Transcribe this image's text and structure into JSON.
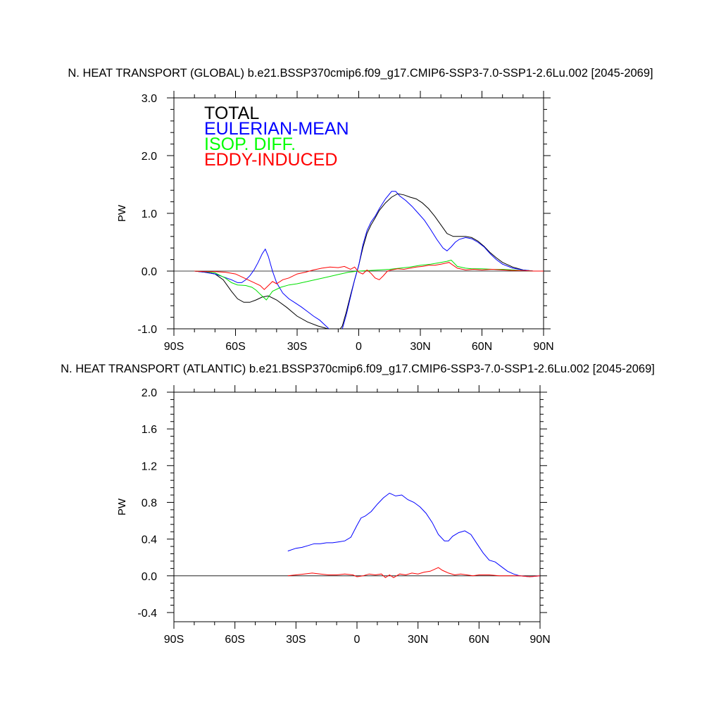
{
  "chart_data": [
    {
      "type": "line",
      "title": "N. HEAT TRANSPORT (GLOBAL) b.e21.BSSP370cmip6.f09_g17.CMIP6-SSP3-7.0-SSP1-2.6Lu.002 [2045-2069]",
      "xlabel": "",
      "ylabel": "PW",
      "xlim": [
        -90,
        90
      ],
      "ylim": [
        -1.0,
        3.0
      ],
      "xticks": [
        -90,
        -60,
        -30,
        0,
        30,
        60,
        90
      ],
      "xtick_labels": [
        "90S",
        "60S",
        "30S",
        "0",
        "30N",
        "60N",
        "90N"
      ],
      "yticks": [
        -1.0,
        0.0,
        1.0,
        2.0,
        3.0
      ],
      "ytick_labels": [
        "-1.0",
        "0.0",
        "1.0",
        "2.0",
        "3.0"
      ],
      "zero_line": true,
      "legend": [
        "TOTAL",
        "EULERIAN-MEAN",
        "ISOP. DIFF.",
        "EDDY-INDUCED"
      ],
      "series": [
        {
          "name": "TOTAL",
          "color": "#000000",
          "x": [
            -80,
            -75,
            -70,
            -66,
            -62,
            -59,
            -56,
            -53,
            -50,
            -47,
            -44,
            -40,
            -35,
            -30,
            -25,
            -20,
            -15,
            -10,
            -8,
            -6,
            -4,
            -2,
            0,
            2,
            4,
            6,
            8,
            10,
            13,
            16,
            19,
            22,
            25,
            28,
            31,
            34,
            37,
            40,
            43,
            46,
            49,
            52,
            55,
            58,
            61,
            64,
            67,
            70,
            75,
            80,
            85,
            90
          ],
          "y": [
            0.0,
            -0.02,
            -0.05,
            -0.15,
            -0.35,
            -0.48,
            -0.54,
            -0.54,
            -0.5,
            -0.45,
            -0.43,
            -0.5,
            -0.63,
            -0.78,
            -0.88,
            -0.95,
            -1.0,
            -1.05,
            -0.95,
            -0.7,
            -0.42,
            -0.15,
            0.1,
            0.4,
            0.65,
            0.8,
            0.92,
            1.05,
            1.18,
            1.28,
            1.34,
            1.32,
            1.28,
            1.25,
            1.18,
            1.08,
            0.95,
            0.8,
            0.65,
            0.6,
            0.6,
            0.6,
            0.58,
            0.52,
            0.43,
            0.32,
            0.23,
            0.15,
            0.07,
            0.02,
            0.0,
            0.0
          ]
        },
        {
          "name": "EULERIAN-MEAN",
          "color": "#0000ff",
          "x": [
            -80,
            -75,
            -70,
            -66,
            -62,
            -59,
            -57,
            -55,
            -53,
            -51,
            -49,
            -47,
            -45.5,
            -44,
            -42,
            -40,
            -37,
            -34,
            -31,
            -28,
            -25,
            -22,
            -19,
            -16,
            -13,
            -10,
            -8,
            -6,
            -4,
            -2,
            0,
            2,
            4,
            6,
            8,
            10,
            13,
            16,
            18,
            20,
            23,
            26,
            29,
            32,
            35,
            38,
            41,
            43,
            45,
            47,
            49,
            52,
            55,
            58,
            61,
            64,
            67,
            70,
            75,
            80,
            85,
            90
          ],
          "y": [
            0.0,
            -0.02,
            -0.05,
            -0.1,
            -0.15,
            -0.2,
            -0.2,
            -0.15,
            -0.08,
            0.02,
            0.15,
            0.3,
            0.38,
            0.25,
            0.0,
            -0.2,
            -0.38,
            -0.48,
            -0.55,
            -0.62,
            -0.7,
            -0.78,
            -0.85,
            -0.95,
            -1.05,
            -1.1,
            -1.0,
            -0.75,
            -0.45,
            -0.15,
            0.1,
            0.45,
            0.7,
            0.85,
            0.95,
            1.08,
            1.25,
            1.38,
            1.38,
            1.3,
            1.22,
            1.12,
            1.0,
            0.88,
            0.72,
            0.55,
            0.4,
            0.35,
            0.42,
            0.5,
            0.55,
            0.58,
            0.56,
            0.5,
            0.42,
            0.3,
            0.2,
            0.12,
            0.05,
            0.02,
            0.0,
            0.0
          ]
        },
        {
          "name": "ISOP. DIFF.",
          "color": "#00e000",
          "x": [
            -80,
            -75,
            -70,
            -65,
            -62,
            -59,
            -55,
            -52,
            -50,
            -48,
            -45,
            -42,
            -38,
            -34,
            -30,
            -25,
            -20,
            -15,
            -10,
            -5,
            0,
            5,
            10,
            15,
            20,
            25,
            30,
            35,
            40,
            43,
            45,
            48,
            52,
            55,
            60,
            65,
            70,
            75,
            80,
            85,
            90
          ],
          "y": [
            0.0,
            -0.01,
            -0.03,
            -0.12,
            -0.2,
            -0.24,
            -0.25,
            -0.28,
            -0.33,
            -0.4,
            -0.5,
            -0.35,
            -0.28,
            -0.24,
            -0.22,
            -0.18,
            -0.14,
            -0.1,
            -0.06,
            -0.02,
            0.0,
            0.01,
            0.02,
            0.03,
            0.05,
            0.07,
            0.1,
            0.12,
            0.15,
            0.17,
            0.19,
            0.08,
            0.05,
            0.04,
            0.04,
            0.03,
            0.03,
            0.02,
            0.01,
            0.0,
            0.0
          ]
        },
        {
          "name": "EDDY-INDUCED",
          "color": "#ff0000",
          "x": [
            -80,
            -75,
            -70,
            -65,
            -60,
            -57,
            -54,
            -51,
            -48,
            -46,
            -44,
            -42,
            -40,
            -37,
            -34,
            -30,
            -26,
            -22,
            -18,
            -14,
            -10,
            -7,
            -4,
            -2,
            0,
            2,
            4,
            6,
            8,
            10,
            12,
            14,
            16,
            19,
            22,
            25,
            28,
            31,
            34,
            37,
            40,
            44,
            48,
            52,
            56,
            60,
            65,
            70,
            75,
            80,
            85,
            90
          ],
          "y": [
            0.0,
            -0.01,
            -0.01,
            -0.02,
            -0.05,
            -0.1,
            -0.15,
            -0.2,
            -0.25,
            -0.32,
            -0.25,
            -0.18,
            -0.22,
            -0.15,
            -0.12,
            -0.05,
            -0.02,
            0.02,
            0.05,
            0.07,
            0.06,
            0.08,
            0.03,
            0.07,
            -0.02,
            -0.05,
            0.02,
            -0.04,
            -0.12,
            -0.15,
            -0.08,
            0.0,
            0.02,
            0.04,
            0.03,
            0.05,
            0.07,
            0.08,
            0.1,
            0.1,
            0.12,
            0.15,
            0.05,
            0.02,
            0.03,
            0.02,
            0.03,
            0.02,
            0.01,
            0.01,
            0.0,
            0.0
          ]
        }
      ]
    },
    {
      "type": "line",
      "title": "N. HEAT TRANSPORT (ATLANTIC) b.e21.BSSP370cmip6.f09_g17.CMIP6-SSP3-7.0-SSP1-2.6Lu.002 [2045-2069]",
      "xlabel": "",
      "ylabel": "PW",
      "xlim": [
        -90,
        90
      ],
      "ylim": [
        -0.5,
        2.0
      ],
      "xticks": [
        -90,
        -60,
        -30,
        0,
        30,
        60,
        90
      ],
      "xtick_labels": [
        "90S",
        "60S",
        "30S",
        "0",
        "30N",
        "60N",
        "90N"
      ],
      "yticks": [
        -0.4,
        0.0,
        0.4,
        0.8,
        1.2,
        1.6,
        2.0
      ],
      "ytick_labels": [
        "-0.4",
        "0.0",
        "0.4",
        "0.8",
        "1.2",
        "1.6",
        "2.0"
      ],
      "zero_line": true,
      "series": [
        {
          "name": "EULERIAN-MEAN",
          "color": "#0000ff",
          "x": [
            -34,
            -30,
            -27,
            -24,
            -21,
            -18,
            -15,
            -12,
            -9,
            -6,
            -3,
            0,
            2,
            4,
            7,
            10,
            13,
            16,
            19,
            22,
            25,
            28,
            31,
            34,
            37,
            40,
            43,
            45,
            47,
            50,
            53,
            56,
            59,
            62,
            65,
            68,
            71,
            74,
            77,
            80,
            85,
            90
          ],
          "y": [
            0.27,
            0.3,
            0.31,
            0.33,
            0.35,
            0.35,
            0.36,
            0.36,
            0.37,
            0.38,
            0.42,
            0.55,
            0.63,
            0.65,
            0.7,
            0.78,
            0.85,
            0.9,
            0.87,
            0.88,
            0.83,
            0.8,
            0.75,
            0.68,
            0.58,
            0.45,
            0.38,
            0.38,
            0.43,
            0.47,
            0.49,
            0.45,
            0.35,
            0.25,
            0.17,
            0.15,
            0.1,
            0.05,
            0.02,
            0.0,
            -0.01,
            0.0
          ]
        },
        {
          "name": "EDDY-INDUCED",
          "color": "#ff0000",
          "x": [
            -34,
            -30,
            -26,
            -22,
            -18,
            -14,
            -10,
            -6,
            -2,
            0,
            3,
            6,
            9,
            12,
            14,
            16,
            18,
            21,
            24,
            27,
            30,
            33,
            36,
            38,
            40,
            42,
            45,
            48,
            51,
            54,
            57,
            60,
            65,
            70,
            75,
            80,
            85,
            90
          ],
          "y": [
            0.0,
            0.01,
            0.02,
            0.03,
            0.02,
            0.01,
            0.01,
            0.02,
            0.01,
            -0.01,
            0.0,
            0.02,
            0.01,
            0.02,
            -0.02,
            0.01,
            -0.02,
            0.02,
            0.01,
            0.03,
            0.02,
            0.04,
            0.05,
            0.07,
            0.09,
            0.06,
            0.03,
            0.01,
            0.02,
            0.01,
            0.0,
            0.01,
            0.01,
            0.0,
            0.0,
            0.0,
            -0.01,
            0.0
          ]
        }
      ]
    }
  ]
}
